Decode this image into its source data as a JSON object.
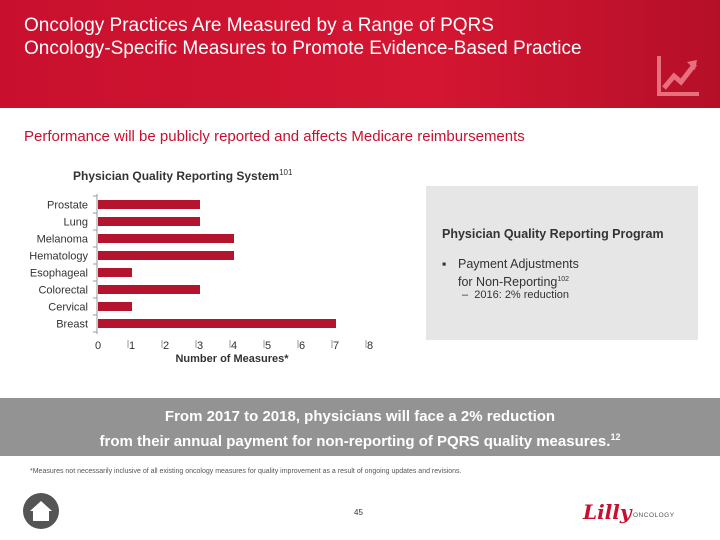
{
  "header": {
    "title_line1": "Oncology Practices Are Measured by a Range of PQRS",
    "title_line2": "Oncology-Specific Measures to Promote Evidence-Based Practice"
  },
  "subtitle": "Performance will be publicly reported and affects Medicare reimbursements",
  "chart_title": {
    "text": "Physician Quality Reporting System",
    "superscript": "101"
  },
  "chart_data": {
    "type": "bar",
    "orientation": "horizontal",
    "categories": [
      "Prostate",
      "Lung",
      "Melanoma",
      "Hematology",
      "Esophageal",
      "Colorectal",
      "Cervical",
      "Breast"
    ],
    "values": [
      3,
      3,
      4,
      4,
      1,
      3,
      1,
      7
    ],
    "xlabel": "Number of Measures*",
    "ylabel": "",
    "xlim": [
      0,
      8
    ],
    "xticks": [
      "0",
      "1",
      "2",
      "3",
      "4",
      "5",
      "6",
      "7",
      "8"
    ],
    "bar_color": "#b5142e"
  },
  "info": {
    "title": "Physician Quality Reporting Program",
    "bullet_line1": "Payment Adjustments",
    "bullet_line2": "for Non-Reporting",
    "bullet_sup": "102",
    "sub": "2016: 2% reduction"
  },
  "banner": {
    "line1": "From 2017 to 2018, physicians will face a 2% reduction",
    "line2": "from their annual payment for non-reporting of PQRS quality measures.",
    "sup": "12"
  },
  "footnote": "*Measures not necessarily inclusive of all existing oncology measures for quality improvement as a result of ongoing updates and revisions.",
  "page_number": "45",
  "logo": {
    "script": "Lilly",
    "word": "ONCOLOGY"
  },
  "colors": {
    "brand_red": "#c8102e",
    "banner_gray": "#939393",
    "info_gray": "#e6e6e6"
  }
}
